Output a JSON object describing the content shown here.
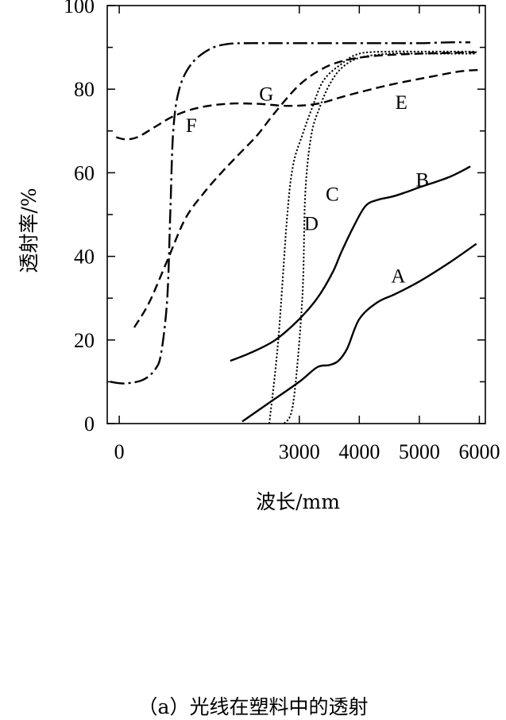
{
  "caption": "（a）光线在塑料中的透射",
  "chart_data": {
    "type": "line",
    "title": "",
    "xlabel": "波长/mm",
    "ylabel": "透射率/%",
    "xlim": [
      -200,
      6100
    ],
    "ylim": [
      0,
      100
    ],
    "x_ticks": [
      0,
      3000,
      4000,
      5000,
      6000
    ],
    "x_tick_labels": [
      "0",
      "3000",
      "4000",
      "5000",
      "6000"
    ],
    "y_ticks": [
      0,
      20,
      40,
      60,
      80,
      100
    ],
    "y_tick_labels": [
      "0",
      "20",
      "40",
      "60",
      "80",
      "100"
    ],
    "grid": false,
    "series": [
      {
        "name": "A",
        "style": "solid",
        "x": [
          2050,
          2500,
          3000,
          3300,
          3500,
          3650,
          3800,
          4000,
          4300,
          4600,
          5000,
          5500,
          5950
        ],
        "y": [
          0.5,
          5,
          10,
          13.5,
          14,
          15,
          18,
          25,
          29,
          31,
          34,
          38.5,
          43
        ]
      },
      {
        "name": "B",
        "style": "solid",
        "x": [
          1850,
          2200,
          2600,
          3000,
          3300,
          3550,
          3700,
          3900,
          4100,
          4300,
          4600,
          5000,
          5500,
          5850
        ],
        "y": [
          15,
          17,
          20,
          25,
          30,
          36,
          41,
          47,
          52,
          53.5,
          54.5,
          56.5,
          59,
          61.5
        ]
      },
      {
        "name": "C",
        "style": "dotted",
        "x": [
          2750,
          2900,
          3050,
          3100,
          3200,
          3350,
          3500,
          3700,
          4000,
          4500,
          5000,
          5500,
          5950
        ],
        "y": [
          0,
          5,
          30,
          55,
          69,
          76,
          81,
          85,
          87.5,
          88.5,
          88.5,
          88.5,
          88.5
        ]
      },
      {
        "name": "D",
        "style": "dotted",
        "x": [
          2500,
          2650,
          2800,
          2900,
          3050,
          3200,
          3400,
          3700,
          4000,
          4500,
          5000,
          5500,
          5950
        ],
        "y": [
          0,
          20,
          50,
          62,
          69,
          75,
          82,
          86,
          88.5,
          89,
          89,
          89,
          89
        ]
      },
      {
        "name": "E",
        "style": "dashed",
        "x": [
          -50,
          100,
          300,
          600,
          900,
          1300,
          1800,
          2300,
          2800,
          3300,
          3800,
          4500,
          5200,
          5700,
          6000
        ],
        "y": [
          68.5,
          68,
          68.5,
          71,
          73.5,
          75.5,
          76.5,
          76.5,
          76,
          76.5,
          78.5,
          81,
          83,
          84.3,
          84.6
        ]
      },
      {
        "name": "F",
        "style": "dash-dot",
        "x": [
          -150,
          100,
          400,
          600,
          700,
          800,
          850,
          900,
          1000,
          1200,
          1500,
          1800,
          2200,
          2600,
          3000,
          3400,
          4000,
          4500,
          5000,
          5500,
          5850
        ],
        "y": [
          10,
          9.6,
          10.5,
          13,
          17,
          30,
          50,
          70,
          80,
          86,
          89.5,
          90.8,
          91,
          91,
          91,
          91,
          91,
          91,
          91,
          91.2,
          91.2
        ]
      },
      {
        "name": "G",
        "style": "dashed",
        "x": [
          250,
          500,
          800,
          1100,
          1400,
          1700,
          2000,
          2300,
          2600,
          3000,
          3400,
          3800,
          4300,
          5000,
          5600,
          5950
        ],
        "y": [
          23,
          29,
          39,
          49,
          55,
          60,
          64.5,
          69,
          74.5,
          81,
          85,
          87,
          88,
          88.5,
          88.7,
          88.8
        ]
      }
    ],
    "series_labels": [
      {
        "text": "A",
        "x": 4650,
        "y": 35.5
      },
      {
        "text": "B",
        "x": 5050,
        "y": 58.5
      },
      {
        "text": "C",
        "x": 3550,
        "y": 55
      },
      {
        "text": "D",
        "x": 3200,
        "y": 48
      },
      {
        "text": "E",
        "x": 4700,
        "y": 77
      },
      {
        "text": "F",
        "x": 1200,
        "y": 71.5
      },
      {
        "text": "G",
        "x": 2450,
        "y": 79
      }
    ]
  }
}
